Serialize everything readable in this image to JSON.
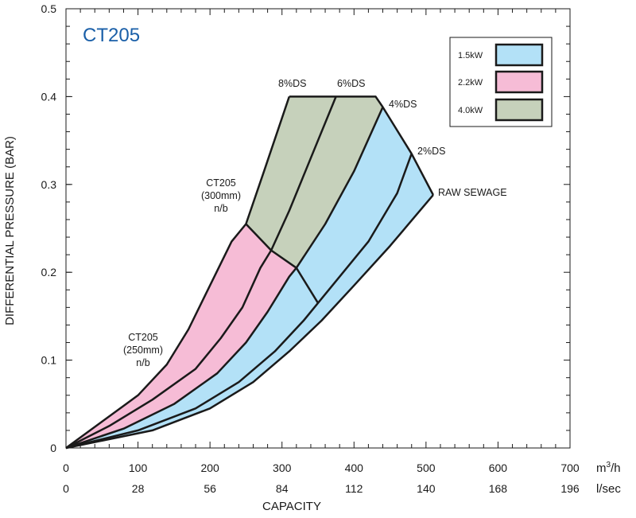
{
  "chart_data": {
    "type": "area",
    "title": "CT205",
    "ylabel": "DIFFERENTIAL PRESSURE (BAR)",
    "xlabel": "CAPACITY",
    "x_units": "m3/h",
    "x2_units": "l/sec",
    "xlim": [
      0,
      700
    ],
    "ylim": [
      0,
      0.5
    ],
    "x_ticks": [
      0,
      100,
      200,
      300,
      400,
      500,
      600,
      700
    ],
    "x2_ticks": [
      0,
      28,
      56,
      84,
      112,
      140,
      168,
      196
    ],
    "y_ticks": [
      0,
      0.1,
      0.2,
      0.3,
      0.4,
      0.5
    ],
    "grid": false,
    "legend_position": "top-right",
    "legend": [
      {
        "label": "1.5kW",
        "color": "#b3e1f7"
      },
      {
        "label": "2.2kW",
        "color": "#f6bcd6"
      },
      {
        "label": "4.0kW",
        "color": "#c6d1bb"
      }
    ],
    "boundaries": [
      {
        "label": "8%DS",
        "points": [
          [
            0,
            0
          ],
          [
            50,
            0.03
          ],
          [
            100,
            0.06
          ],
          [
            140,
            0.095
          ],
          [
            170,
            0.135
          ],
          [
            200,
            0.185
          ],
          [
            230,
            0.235
          ],
          [
            250,
            0.255
          ],
          [
            275,
            0.315
          ],
          [
            310,
            0.4
          ]
        ]
      },
      {
        "label": "6%DS",
        "points": [
          [
            0,
            0
          ],
          [
            60,
            0.025
          ],
          [
            120,
            0.055
          ],
          [
            180,
            0.09
          ],
          [
            215,
            0.125
          ],
          [
            245,
            0.16
          ],
          [
            270,
            0.205
          ],
          [
            285,
            0.225
          ],
          [
            310,
            0.27
          ],
          [
            340,
            0.33
          ],
          [
            375,
            0.4
          ]
        ]
      },
      {
        "label": "4%DS",
        "points": [
          [
            0,
            0
          ],
          [
            80,
            0.022
          ],
          [
            150,
            0.05
          ],
          [
            210,
            0.085
          ],
          [
            250,
            0.12
          ],
          [
            280,
            0.155
          ],
          [
            310,
            0.195
          ],
          [
            320,
            0.205
          ],
          [
            360,
            0.255
          ],
          [
            400,
            0.315
          ],
          [
            440,
            0.388
          ]
        ]
      },
      {
        "label": "2%DS",
        "points": [
          [
            0,
            0
          ],
          [
            100,
            0.02
          ],
          [
            180,
            0.045
          ],
          [
            240,
            0.075
          ],
          [
            290,
            0.11
          ],
          [
            330,
            0.145
          ],
          [
            350,
            0.165
          ],
          [
            380,
            0.195
          ],
          [
            420,
            0.235
          ],
          [
            460,
            0.29
          ],
          [
            480,
            0.335
          ]
        ]
      },
      {
        "label": "RAW SEWAGE",
        "points": [
          [
            0,
            0
          ],
          [
            120,
            0.02
          ],
          [
            200,
            0.045
          ],
          [
            260,
            0.075
          ],
          [
            310,
            0.11
          ],
          [
            355,
            0.145
          ],
          [
            400,
            0.185
          ],
          [
            450,
            0.23
          ],
          [
            510,
            0.288
          ]
        ]
      }
    ],
    "power_boundary": [
      [
        250,
        0.255
      ],
      [
        285,
        0.225
      ],
      [
        320,
        0.205
      ],
      [
        350,
        0.165
      ]
    ],
    "top_edge": [
      [
        310,
        0.4
      ],
      [
        430,
        0.4
      ],
      [
        440,
        0.388
      ],
      [
        480,
        0.335
      ],
      [
        510,
        0.288
      ]
    ],
    "zones": [
      {
        "power": "4.0kW",
        "between": [
          "8%DS",
          "4%DS"
        ],
        "above_power_boundary": true
      },
      {
        "power": "1.5kW",
        "between": [
          "4%DS",
          "RAW SEWAGE"
        ],
        "above_power_boundary": true
      },
      {
        "power": "2.2kW",
        "between": [
          "8%DS",
          "4%DS"
        ],
        "above_power_boundary": false
      },
      {
        "power": "1.5kW",
        "between": [
          "4%DS",
          "RAW SEWAGE"
        ],
        "above_power_boundary": false
      }
    ],
    "annotations": [
      {
        "lines": [
          "CT205",
          "(300mm)",
          "n/b"
        ]
      },
      {
        "lines": [
          "CT205",
          "(250mm)",
          "n/b"
        ]
      }
    ],
    "units_superscript": "3"
  }
}
